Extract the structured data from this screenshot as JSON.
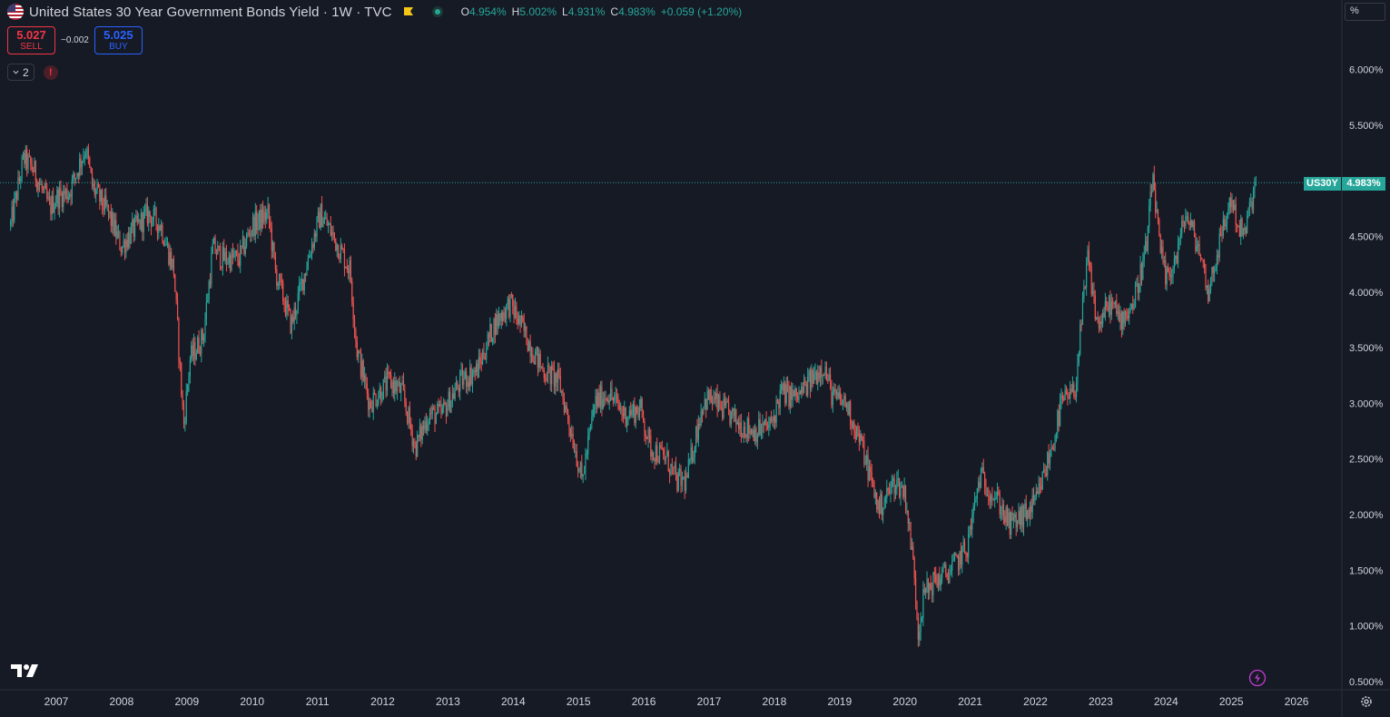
{
  "header": {
    "title": "United States 30 Year Government Bonds Yield · 1W · TVC",
    "ohlc": {
      "open_label": "O",
      "open": "4.954%",
      "high_label": "H",
      "high": "5.002%",
      "low_label": "L",
      "low": "4.931%",
      "close_label": "C",
      "close": "4.983%",
      "change": "+0.059 (+1.20%)"
    }
  },
  "trade": {
    "sell_price": "5.027",
    "sell_label": "SELL",
    "spread": "−0.002",
    "buy_price": "5.025",
    "buy_label": "BUY"
  },
  "indicators": {
    "count": "2",
    "alert_glyph": "!"
  },
  "price_scale": {
    "unit": "%"
  },
  "price_tag": {
    "symbol": "US30Y",
    "value": "4.983%"
  },
  "colors": {
    "background": "#161a25",
    "up": "#26a69a",
    "down": "#ef5350",
    "grid_text": "#d1d4dc"
  },
  "icons": [
    "us-flag-icon",
    "flag-icon",
    "status-dot-icon",
    "chevron-down-icon",
    "alert-icon",
    "tradingview-logo-icon",
    "lightning-icon",
    "gear-icon"
  ],
  "chart_data": {
    "type": "candlestick",
    "title": "",
    "xlabel": "",
    "ylabel": "",
    "y_tick_labels": [
      "0.500%",
      "1.000%",
      "1.500%",
      "2.000%",
      "2.500%",
      "3.000%",
      "3.500%",
      "4.000%",
      "4.500%",
      "5.000%",
      "5.500%",
      "6.000%"
    ],
    "x_tick_labels": [
      "2007",
      "2008",
      "2009",
      "2010",
      "2011",
      "2012",
      "2013",
      "2014",
      "2015",
      "2016",
      "2017",
      "2018",
      "2019",
      "2020",
      "2021",
      "2022",
      "2023",
      "2024",
      "2025",
      "2026"
    ],
    "ylim": [
      0.5,
      6.2
    ],
    "xlim": [
      2006.3,
      2026.65
    ],
    "last_value": 4.983,
    "series": [
      {
        "interval": "1W",
        "approx_weekly_closes": [
          [
            2006.3,
            4.6
          ],
          [
            2006.5,
            5.2
          ],
          [
            2006.65,
            5.1
          ],
          [
            2006.9,
            4.75
          ],
          [
            2007.0,
            4.85
          ],
          [
            2007.2,
            4.9
          ],
          [
            2007.45,
            5.3
          ],
          [
            2007.55,
            4.95
          ],
          [
            2007.8,
            4.7
          ],
          [
            2008.0,
            4.4
          ],
          [
            2008.1,
            4.5
          ],
          [
            2008.4,
            4.7
          ],
          [
            2008.6,
            4.6
          ],
          [
            2008.8,
            4.2
          ],
          [
            2008.95,
            2.8
          ],
          [
            2009.05,
            3.4
          ],
          [
            2009.25,
            3.6
          ],
          [
            2009.4,
            4.4
          ],
          [
            2009.55,
            4.3
          ],
          [
            2009.8,
            4.3
          ],
          [
            2010.0,
            4.6
          ],
          [
            2010.25,
            4.7
          ],
          [
            2010.35,
            4.2
          ],
          [
            2010.6,
            3.7
          ],
          [
            2010.9,
            4.4
          ],
          [
            2011.05,
            4.7
          ],
          [
            2011.2,
            4.55
          ],
          [
            2011.5,
            4.2
          ],
          [
            2011.6,
            3.5
          ],
          [
            2011.8,
            3.0
          ],
          [
            2012.1,
            3.2
          ],
          [
            2012.3,
            3.1
          ],
          [
            2012.5,
            2.6
          ],
          [
            2012.7,
            2.9
          ],
          [
            2012.9,
            2.9
          ],
          [
            2013.2,
            3.2
          ],
          [
            2013.45,
            3.3
          ],
          [
            2013.7,
            3.7
          ],
          [
            2013.95,
            3.9
          ],
          [
            2014.2,
            3.6
          ],
          [
            2014.45,
            3.3
          ],
          [
            2014.7,
            3.2
          ],
          [
            2014.95,
            2.6
          ],
          [
            2015.05,
            2.3
          ],
          [
            2015.25,
            3.0
          ],
          [
            2015.45,
            3.1
          ],
          [
            2015.7,
            2.9
          ],
          [
            2015.95,
            2.95
          ],
          [
            2016.1,
            2.6
          ],
          [
            2016.35,
            2.5
          ],
          [
            2016.5,
            2.3
          ],
          [
            2016.65,
            2.3
          ],
          [
            2016.9,
            3.0
          ],
          [
            2017.0,
            3.05
          ],
          [
            2017.3,
            2.9
          ],
          [
            2017.5,
            2.8
          ],
          [
            2017.7,
            2.75
          ],
          [
            2017.95,
            2.8
          ],
          [
            2018.1,
            3.1
          ],
          [
            2018.35,
            3.05
          ],
          [
            2018.75,
            3.35
          ],
          [
            2018.9,
            3.05
          ],
          [
            2019.1,
            3.0
          ],
          [
            2019.35,
            2.6
          ],
          [
            2019.6,
            2.05
          ],
          [
            2019.85,
            2.3
          ],
          [
            2020.0,
            2.2
          ],
          [
            2020.15,
            1.45
          ],
          [
            2020.2,
            0.95
          ],
          [
            2020.3,
            1.3
          ],
          [
            2020.45,
            1.4
          ],
          [
            2020.7,
            1.5
          ],
          [
            2020.95,
            1.7
          ],
          [
            2021.15,
            2.35
          ],
          [
            2021.45,
            2.1
          ],
          [
            2021.6,
            1.9
          ],
          [
            2021.85,
            2.0
          ],
          [
            2022.0,
            2.1
          ],
          [
            2022.25,
            2.6
          ],
          [
            2022.4,
            3.0
          ],
          [
            2022.6,
            3.1
          ],
          [
            2022.8,
            4.3
          ],
          [
            2022.95,
            3.7
          ],
          [
            2023.15,
            3.9
          ],
          [
            2023.3,
            3.75
          ],
          [
            2023.5,
            3.9
          ],
          [
            2023.7,
            4.4
          ],
          [
            2023.8,
            5.05
          ],
          [
            2023.9,
            4.4
          ],
          [
            2024.0,
            4.1
          ],
          [
            2024.15,
            4.3
          ],
          [
            2024.3,
            4.7
          ],
          [
            2024.5,
            4.4
          ],
          [
            2024.65,
            4.0
          ],
          [
            2024.8,
            4.4
          ],
          [
            2025.0,
            4.85
          ],
          [
            2025.1,
            4.6
          ],
          [
            2025.2,
            4.5
          ],
          [
            2025.3,
            4.8
          ],
          [
            2025.38,
            4.983
          ]
        ]
      }
    ]
  }
}
